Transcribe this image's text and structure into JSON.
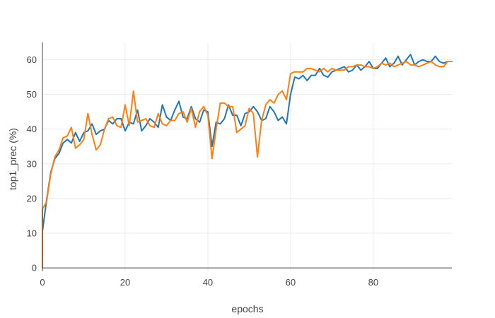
{
  "chart_data": {
    "type": "line",
    "title": "",
    "xlabel": "epochs",
    "ylabel": "top1_prec (%)",
    "xlim": [
      0,
      99
    ],
    "ylim": [
      -1,
      65
    ],
    "x_ticks": [
      0,
      20,
      40,
      60,
      80
    ],
    "y_ticks": [
      0,
      10,
      20,
      30,
      40,
      50,
      60
    ],
    "grid": true,
    "legend": "none",
    "series": [
      {
        "color": "#1f77b4",
        "values": [
          10.5,
          19.5,
          27.5,
          31.5,
          33.0,
          36.0,
          37.0,
          36.0,
          39.0,
          36.5,
          39.0,
          39.5,
          41.5,
          38.5,
          39.5,
          40.0,
          42.5,
          41.5,
          43.0,
          43.0,
          39.5,
          42.0,
          41.5,
          45.5,
          39.5,
          41.0,
          43.0,
          42.0,
          40.5,
          47.0,
          43.5,
          42.5,
          45.5,
          48.0,
          43.5,
          43.0,
          46.5,
          43.0,
          42.0,
          45.5,
          45.0,
          35.0,
          42.0,
          41.5,
          43.0,
          47.0,
          44.0,
          44.0,
          41.0,
          44.5,
          45.0,
          46.5,
          45.0,
          42.5,
          43.0,
          46.5,
          45.0,
          42.5,
          43.5,
          41.5,
          50.0,
          55.0,
          54.5,
          55.5,
          54.0,
          55.5,
          55.5,
          57.5,
          55.5,
          55.0,
          56.5,
          57.0,
          57.5,
          58.0,
          56.5,
          57.0,
          58.5,
          57.0,
          58.0,
          59.5,
          57.5,
          57.5,
          59.0,
          60.5,
          58.0,
          59.0,
          61.0,
          58.5,
          60.0,
          61.5,
          58.5,
          59.5,
          60.0,
          59.5,
          59.5,
          61.0,
          59.5,
          59.0,
          59.5,
          59.5
        ]
      },
      {
        "color": "#ff7f0e",
        "values": [
          17.0,
          19.0,
          27.0,
          32.0,
          34.0,
          37.5,
          38.0,
          40.5,
          34.5,
          35.5,
          37.0,
          44.5,
          38.5,
          34.0,
          35.5,
          40.0,
          43.0,
          43.5,
          41.0,
          40.5,
          47.0,
          41.0,
          51.0,
          42.0,
          42.5,
          43.0,
          41.0,
          40.5,
          44.5,
          41.5,
          41.0,
          42.5,
          42.5,
          44.5,
          45.0,
          42.0,
          46.0,
          40.5,
          45.0,
          46.5,
          44.0,
          31.5,
          40.0,
          47.5,
          47.5,
          46.5,
          46.5,
          39.0,
          40.0,
          41.0,
          46.0,
          44.5,
          32.0,
          42.5,
          47.0,
          48.5,
          47.5,
          50.0,
          51.0,
          48.5,
          56.0,
          56.5,
          56.5,
          56.5,
          57.5,
          57.5,
          57.0,
          56.5,
          57.5,
          56.5,
          57.5,
          57.0,
          57.0,
          57.0,
          58.0,
          58.0,
          58.5,
          58.5,
          58.0,
          58.0,
          57.5,
          58.0,
          59.0,
          58.5,
          59.0,
          58.0,
          58.5,
          59.0,
          59.5,
          58.5,
          58.5,
          58.0,
          58.5,
          59.0,
          59.5,
          58.5,
          58.0,
          58.0,
          59.5,
          59.5
        ]
      }
    ]
  }
}
